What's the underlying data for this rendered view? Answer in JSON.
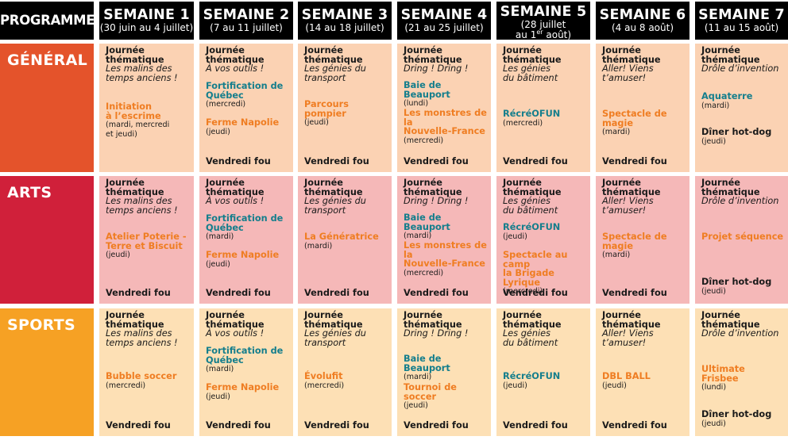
{
  "header": {
    "programmes": "PROGRAMMES",
    "weeks": [
      {
        "title": "SEMAINE 1",
        "dates": "(30 juin au 4 juillet)"
      },
      {
        "title": "SEMAINE 2",
        "dates": "(7 au 11 juillet)"
      },
      {
        "title": "SEMAINE 3",
        "dates": "(14 au 18 juillet)"
      },
      {
        "title": "SEMAINE 4",
        "dates": "(21 au 25 juillet)"
      },
      {
        "title": "SEMAINE 5",
        "dates_l1": "(28 juillet",
        "dates_l2a": "au 1",
        "dates_sup": "er",
        "dates_l2b": " août)"
      },
      {
        "title": "SEMAINE 6",
        "dates": "(4 au 8 août)"
      },
      {
        "title": "SEMAINE 7",
        "dates": "(11 au 15 août)"
      }
    ]
  },
  "colors": {
    "general_side": "#e4532b",
    "arts_side": "#d0203a",
    "sports_side": "#f6a124",
    "general_cell": "#fbd2b3",
    "arts_cell": "#f5b8b8",
    "sports_cell": "#fde0b5",
    "orange_text": "#ef7d22",
    "teal_text": "#147e8c",
    "header_bg": "#000000"
  },
  "rows": [
    {
      "name": "GÉNÉRAL",
      "cells": [
        {
          "l1": "Journée",
          "l2": "thématique",
          "th1": "Les malins des",
          "th2": "temps anciens !",
          "acts": [
            {
              "n1": "Initiation",
              "n2": "à l’escrime",
              "c": "o",
              "d1": "(mardi, mercredi",
              "d2": "et jeudi)"
            }
          ],
          "vf": ""
        },
        {
          "l1": "Journée",
          "l2": "thématique",
          "th1": "À vos outils !",
          "acts": [
            {
              "n1": "Fortification de",
              "n2": "Québec",
              "c": "t",
              "d1": "(mercredi)"
            },
            {
              "n1": "Ferme Napolie",
              "c": "o",
              "d1": "(jeudi)"
            }
          ],
          "vf": "Vendredi fou"
        },
        {
          "l1": "Journée",
          "l2": "thématique",
          "th1": "Les génies du",
          "th2": "transport",
          "acts": [
            {
              "n1": "Parcours pompier",
              "c": "o",
              "d1": "(jeudi)"
            }
          ],
          "vf": "Vendredi fou"
        },
        {
          "l1": "Journée",
          "l2": "thématique",
          "th1": "Dring ! Dring !",
          "acts": [
            {
              "n1": "Baie de Beauport",
              "c": "t",
              "d1": "(lundi)"
            },
            {
              "n1": "Les monstres de la",
              "n2": "Nouvelle-France",
              "c": "o",
              "d1": "(mercredi)"
            }
          ],
          "vf": "Vendredi fou"
        },
        {
          "l1": "Journée",
          "l2": "thématique",
          "th1": "Les génies",
          "th2": "du bâtiment",
          "acts": [
            {
              "n1": "RécréOFUN",
              "c": "t",
              "d1": "(mercredi)"
            }
          ],
          "vf": "Vendredi fou"
        },
        {
          "l1": "Journée",
          "l2": "thématique",
          "th1": "Aller! Viens",
          "th2": "t’amuser!",
          "acts": [
            {
              "n1": "Spectacle de magie",
              "c": "o",
              "d1": "(mardi)"
            }
          ],
          "vf": "Vendredi fou"
        },
        {
          "l1": "Journée",
          "l2": "thématique",
          "th1": "Drôle d’invention",
          "acts": [
            {
              "n1": "Aquaterre",
              "c": "t",
              "d1": "(mardi)"
            },
            {
              "n1": "Dîner hot-dog",
              "c": "k",
              "d1": "(jeudi)"
            }
          ],
          "vf": ""
        }
      ]
    },
    {
      "name": "ARTS",
      "cells": [
        {
          "l1": "Journée",
          "l2": "thématique",
          "th1": "Les malins des",
          "th2": "temps anciens !",
          "acts": [
            {
              "n1": "Atelier Poterie -",
              "n2": "Terre et Biscuit",
              "c": "o",
              "d1": "(jeudi)"
            }
          ],
          "vf": "Vendredi fou"
        },
        {
          "l1": "Journée",
          "l2": "thématique",
          "th1": "À vos outils !",
          "acts": [
            {
              "n1": "Fortification de",
              "n2": "Québec",
              "c": "t",
              "d1": "(mardi)"
            },
            {
              "n1": "Ferme Napolie",
              "c": "o",
              "d1": "(jeudi)"
            }
          ],
          "vf": "Vendredi fou"
        },
        {
          "l1": "Journée",
          "l2": "thématique",
          "th1": "Les génies du",
          "th2": "transport",
          "acts": [
            {
              "n1": "La Génératrice",
              "c": "o",
              "d1": "(mardi)"
            }
          ],
          "vf": "Vendredi fou"
        },
        {
          "l1": "Journée",
          "l2": "thématique",
          "th1": "Dring ! Dring !",
          "acts": [
            {
              "n1": "Baie de Beauport",
              "c": "t",
              "d1": "(mardi)"
            },
            {
              "n1": "Les monstres de la",
              "n2": "Nouvelle-France",
              "c": "o",
              "d1": "(mercredi)"
            }
          ],
          "vf": "Vendredi fou"
        },
        {
          "l1": "Journée",
          "l2": "thématique",
          "th1": "Les génies",
          "th2": "du bâtiment",
          "acts": [
            {
              "n1": "RécréOFUN",
              "c": "t",
              "d1": "(jeudi)"
            },
            {
              "n1": "Spectacle au camp",
              "n2": "la Brigade Lyrique",
              "c": "o",
              "d1": "(mercredi)"
            }
          ],
          "vf": "Vendredi fou"
        },
        {
          "l1": "Journée",
          "l2": "thématique",
          "th1": "Aller! Viens",
          "th2": "t’amuser!",
          "acts": [
            {
              "n1": "Spectacle de magie",
              "c": "o",
              "d1": "(mardi)"
            }
          ],
          "vf": "Vendredi fou"
        },
        {
          "l1": "Journée",
          "l2": "thématique",
          "th1": "Drôle d’invention",
          "acts": [
            {
              "n1": "Projet séquence",
              "c": "o"
            },
            {
              "n1": "Dîner hot-dog",
              "c": "k",
              "d1": "(jeudi)"
            }
          ],
          "vf": ""
        }
      ]
    },
    {
      "name": "SPORTS",
      "cells": [
        {
          "l1": "Journée",
          "l2": "thématique",
          "th1": "Les malins des",
          "th2": "temps anciens !",
          "acts": [
            {
              "n1": "Bubble soccer",
              "c": "o",
              "d1": "(mercredi)"
            }
          ],
          "vf": "Vendredi fou"
        },
        {
          "l1": "Journée",
          "l2": "thématique",
          "th1": "À vos outils !",
          "acts": [
            {
              "n1": "Fortification de",
              "n2": "Québec",
              "c": "t",
              "d1": "(mardi)"
            },
            {
              "n1": "Ferme Napolie",
              "c": "o",
              "d1": "(jeudi)"
            }
          ],
          "vf": "Vendredi fou"
        },
        {
          "l1": "Journée",
          "l2": "thématique",
          "th1": "Les génies du",
          "th2": "transport",
          "acts": [
            {
              "n1": "Évolufit",
              "c": "o",
              "d1": "(mercredi)"
            }
          ],
          "vf": "Vendredi fou"
        },
        {
          "l1": "Journée",
          "l2": "thématique",
          "th1": "Dring ! Dring !",
          "acts": [
            {
              "n1": "Baie de Beauport",
              "c": "t",
              "d1": "(mardi)"
            },
            {
              "n1": "Tournoi de soccer",
              "c": "o",
              "d1": "(jeudi)"
            }
          ],
          "vf": "Vendredi fou"
        },
        {
          "l1": "Journée",
          "l2": "thématique",
          "th1": "Les génies",
          "th2": "du bâtiment",
          "acts": [
            {
              "n1": "RécréOFUN",
              "c": "t",
              "d1": "(jeudi)"
            }
          ],
          "vf": "Vendredi fou"
        },
        {
          "l1": "Journée",
          "l2": "thématique",
          "th1": "Aller! Viens",
          "th2": "t’amuser!",
          "acts": [
            {
              "n1": "DBL BALL",
              "c": "o",
              "d1": "(jeudi)"
            }
          ],
          "vf": "Vendredi fou"
        },
        {
          "l1": "Journée",
          "l2": "thématique",
          "th1": "Drôle d’invention",
          "acts": [
            {
              "n1": "Ultimate Frisbee",
              "c": "o",
              "d1": "(lundi)"
            },
            {
              "n1": "Dîner hot-dog",
              "c": "k",
              "d1": "(jeudi)"
            }
          ],
          "vf": ""
        }
      ]
    }
  ]
}
